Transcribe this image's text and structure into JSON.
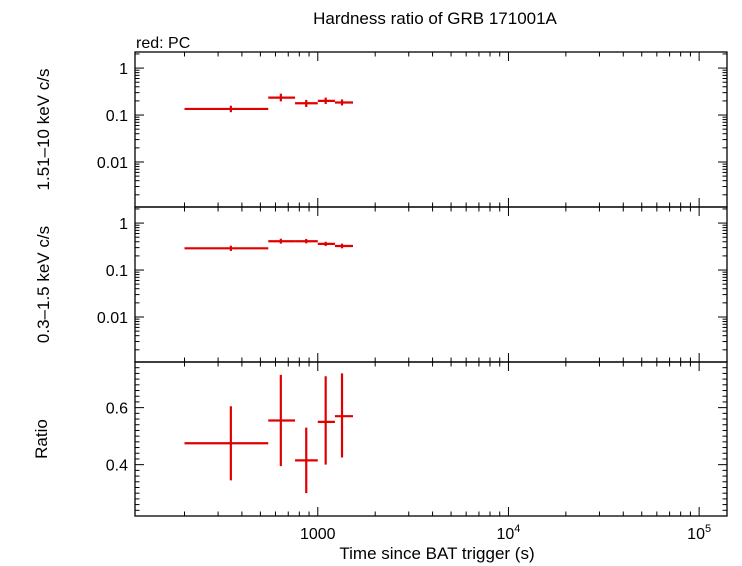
{
  "figure": {
    "title": "Hardness ratio of GRB 171001A",
    "legend_note": "red: PC",
    "xlabel": "Time since BAT trigger (s)",
    "series_color": "#e00000"
  },
  "chart_data": [
    {
      "type": "scatter",
      "panel": "top",
      "ylabel": "1.51–10 keV c/s",
      "xscale": "log",
      "yscale": "log",
      "xlim": [
        110,
        140000
      ],
      "ylim": [
        0.0011,
        2.2
      ],
      "yticks": [
        {
          "v": 1,
          "label": "1"
        },
        {
          "v": 0.1,
          "label": "0.1"
        },
        {
          "v": 0.01,
          "label": "0.01"
        }
      ],
      "points": [
        {
          "x": 350,
          "xlo": 200,
          "xhi": 550,
          "y": 0.135,
          "ylo": 0.115,
          "yhi": 0.158
        },
        {
          "x": 640,
          "xlo": 550,
          "xhi": 760,
          "y": 0.235,
          "ylo": 0.195,
          "yhi": 0.285
        },
        {
          "x": 870,
          "xlo": 760,
          "xhi": 1000,
          "y": 0.178,
          "ylo": 0.148,
          "yhi": 0.21
        },
        {
          "x": 1100,
          "xlo": 1000,
          "xhi": 1230,
          "y": 0.2,
          "ylo": 0.172,
          "yhi": 0.235
        },
        {
          "x": 1340,
          "xlo": 1230,
          "xhi": 1530,
          "y": 0.185,
          "ylo": 0.16,
          "yhi": 0.215
        }
      ]
    },
    {
      "type": "scatter",
      "panel": "middle",
      "ylabel": "0.3–1.5 keV c/s",
      "xscale": "log",
      "yscale": "log",
      "xlim": [
        110,
        140000
      ],
      "ylim": [
        0.0011,
        2.2
      ],
      "yticks": [
        {
          "v": 1,
          "label": "1"
        },
        {
          "v": 0.1,
          "label": "0.1"
        },
        {
          "v": 0.01,
          "label": "0.01"
        }
      ],
      "points": [
        {
          "x": 350,
          "xlo": 200,
          "xhi": 550,
          "y": 0.29,
          "ylo": 0.255,
          "yhi": 0.33
        },
        {
          "x": 640,
          "xlo": 550,
          "xhi": 760,
          "y": 0.41,
          "ylo": 0.365,
          "yhi": 0.465
        },
        {
          "x": 870,
          "xlo": 760,
          "xhi": 1000,
          "y": 0.41,
          "ylo": 0.37,
          "yhi": 0.46
        },
        {
          "x": 1100,
          "xlo": 1000,
          "xhi": 1230,
          "y": 0.36,
          "ylo": 0.325,
          "yhi": 0.4
        },
        {
          "x": 1340,
          "xlo": 1230,
          "xhi": 1530,
          "y": 0.325,
          "ylo": 0.29,
          "yhi": 0.365
        }
      ]
    },
    {
      "type": "scatter",
      "panel": "bottom",
      "ylabel": "Ratio",
      "xscale": "log",
      "yscale": "linear",
      "xlim": [
        110,
        140000
      ],
      "ylim": [
        0.22,
        0.76
      ],
      "yticks": [
        {
          "v": 0.6,
          "label": "0.6"
        },
        {
          "v": 0.4,
          "label": "0.4"
        }
      ],
      "xticks": [
        {
          "v": 1000,
          "base": "1000",
          "exp": ""
        },
        {
          "v": 10000,
          "base": "10",
          "exp": "4"
        },
        {
          "v": 100000,
          "base": "10",
          "exp": "5"
        }
      ],
      "points": [
        {
          "x": 350,
          "xlo": 200,
          "xhi": 550,
          "y": 0.475,
          "ylo": 0.345,
          "yhi": 0.605
        },
        {
          "x": 640,
          "xlo": 550,
          "xhi": 760,
          "y": 0.555,
          "ylo": 0.395,
          "yhi": 0.715
        },
        {
          "x": 870,
          "xlo": 760,
          "xhi": 1000,
          "y": 0.415,
          "ylo": 0.3,
          "yhi": 0.53
        },
        {
          "x": 1100,
          "xlo": 1000,
          "xhi": 1230,
          "y": 0.55,
          "ylo": 0.4,
          "yhi": 0.71
        },
        {
          "x": 1340,
          "xlo": 1230,
          "xhi": 1530,
          "y": 0.57,
          "ylo": 0.425,
          "yhi": 0.72
        }
      ]
    }
  ]
}
